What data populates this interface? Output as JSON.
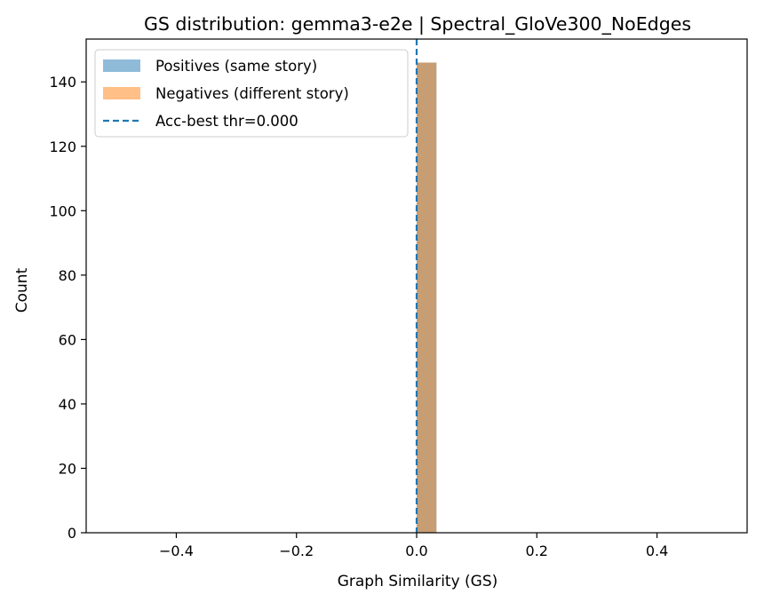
{
  "chart_data": {
    "type": "bar",
    "title": "GS distribution: gemma3-e2e | Spectral_GloVe300_NoEdges",
    "xlabel": "Graph Similarity (GS)",
    "ylabel": "Count",
    "xlim": [
      -0.55,
      0.55
    ],
    "ylim": [
      0,
      153.3
    ],
    "xticks": [
      -0.4,
      -0.2,
      0.0,
      0.2,
      0.4
    ],
    "xtick_labels": [
      "−0.4",
      "−0.2",
      "0.0",
      "0.2",
      "0.4"
    ],
    "yticks": [
      0,
      20,
      40,
      60,
      80,
      100,
      120,
      140
    ],
    "ytick_labels": [
      "0",
      "20",
      "40",
      "60",
      "80",
      "100",
      "120",
      "140"
    ],
    "series": [
      {
        "name": "Positives (same story)",
        "color": "#1f77b4",
        "alpha": 0.5,
        "bins": [
          {
            "x0": 0.0,
            "x1": 0.033,
            "count": 146
          }
        ]
      },
      {
        "name": "Negatives (different story)",
        "color": "#ff7f0e",
        "alpha": 0.5,
        "bins": [
          {
            "x0": 0.0,
            "x1": 0.033,
            "count": 146
          }
        ]
      }
    ],
    "threshold": {
      "label": "Acc-best thr=0.000",
      "value": 0.0,
      "color": "#1f77b4",
      "style": "dashed"
    },
    "legend_position": "top-left",
    "grid": false
  }
}
